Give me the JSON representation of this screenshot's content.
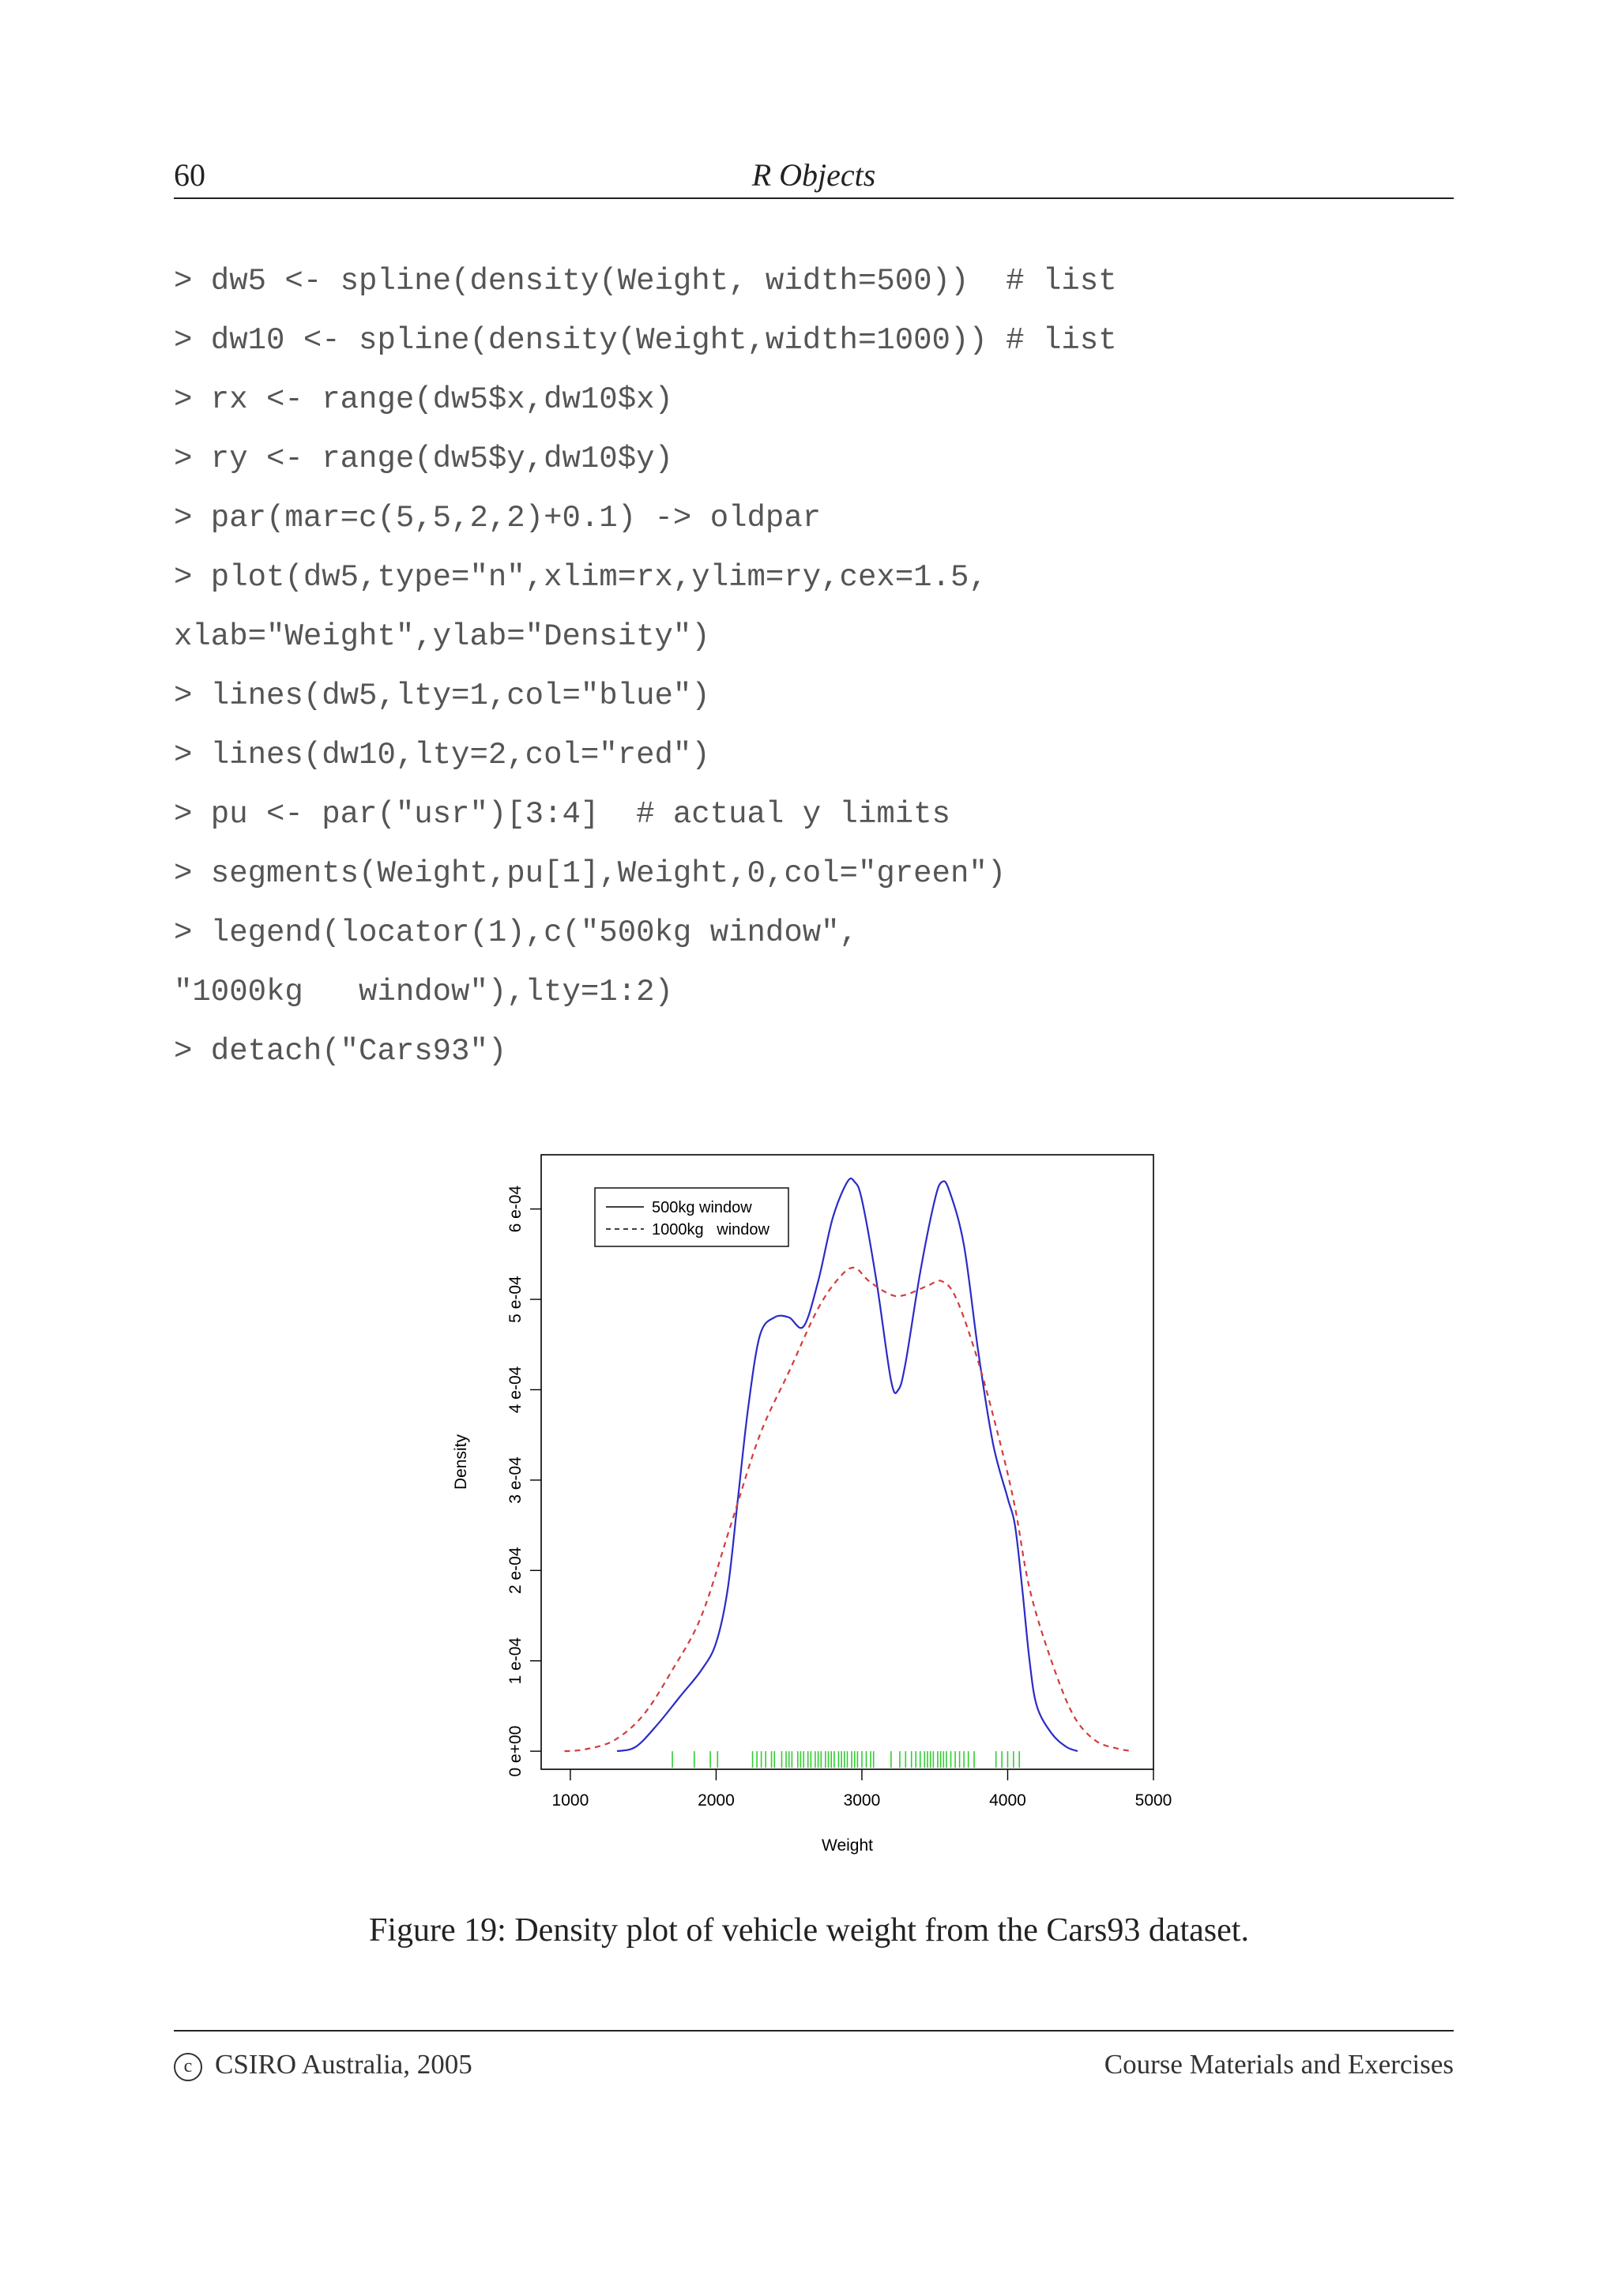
{
  "header": {
    "page_number": "60",
    "title": "R Objects"
  },
  "code_lines": [
    "> dw5 <- spline(density(Weight, width=500))  # list",
    "> dw10 <- spline(density(Weight,width=1000)) # list",
    "> rx <- range(dw5$x,dw10$x)",
    "> ry <- range(dw5$y,dw10$y)",
    "> par(mar=c(5,5,2,2)+0.1) -> oldpar",
    "> plot(dw5,type=\"n\",xlim=rx,ylim=ry,cex=1.5,",
    "xlab=\"Weight\",ylab=\"Density\")",
    "> lines(dw5,lty=1,col=\"blue\")",
    "> lines(dw10,lty=2,col=\"red\")",
    "> pu <- par(\"usr\")[3:4]  # actual y limits",
    "> segments(Weight,pu[1],Weight,0,col=\"green\")",
    "> legend(locator(1),c(\"500kg window\",",
    "\"1000kg   window\"),lty=1:2)",
    "> detach(\"Cars93\")"
  ],
  "chart_data": {
    "type": "line",
    "xlabel": "Weight",
    "ylabel": "Density",
    "xlim": [
      800,
      5000
    ],
    "ylim": [
      -2e-05,
      0.00066
    ],
    "x_ticks": [
      1000,
      2000,
      3000,
      4000,
      5000
    ],
    "x_tick_labels": [
      "1000",
      "2000",
      "3000",
      "4000",
      "5000"
    ],
    "y_ticks": [
      0,
      0.0001,
      0.0002,
      0.0003,
      0.0004,
      0.0005,
      0.0006
    ],
    "y_tick_labels": [
      "0 e+00",
      "1 e-04",
      "2 e-04",
      "3 e-04",
      "4 e-04",
      "5 e-04",
      "6 e-04"
    ],
    "legend_position": "top-left",
    "series": [
      {
        "name": "500kg window",
        "line_style": "solid",
        "color": "#2b2bc8",
        "points": [
          [
            1320,
            0
          ],
          [
            1450,
            5e-06
          ],
          [
            1600,
            3e-05
          ],
          [
            1750,
            6e-05
          ],
          [
            1900,
            9e-05
          ],
          [
            2000,
            0.00012
          ],
          [
            2080,
            0.00018
          ],
          [
            2150,
            0.00028
          ],
          [
            2220,
            0.00038
          ],
          [
            2300,
            0.00046
          ],
          [
            2400,
            0.00048
          ],
          [
            2500,
            0.00048
          ],
          [
            2600,
            0.00047
          ],
          [
            2700,
            0.00052
          ],
          [
            2800,
            0.00059
          ],
          [
            2900,
            0.00063
          ],
          [
            2950,
            0.00063
          ],
          [
            3000,
            0.00061
          ],
          [
            3100,
            0.00052
          ],
          [
            3200,
            0.00041
          ],
          [
            3250,
            0.0004
          ],
          [
            3300,
            0.00043
          ],
          [
            3400,
            0.00053
          ],
          [
            3500,
            0.00061
          ],
          [
            3550,
            0.00063
          ],
          [
            3600,
            0.00062
          ],
          [
            3700,
            0.00056
          ],
          [
            3800,
            0.00044
          ],
          [
            3900,
            0.00034
          ],
          [
            4000,
            0.00028
          ],
          [
            4050,
            0.00025
          ],
          [
            4100,
            0.00018
          ],
          [
            4150,
            0.0001
          ],
          [
            4200,
            5e-05
          ],
          [
            4300,
            2e-05
          ],
          [
            4400,
            5e-06
          ],
          [
            4480,
            0
          ]
        ]
      },
      {
        "name": "1000kg   window",
        "line_style": "dashed",
        "color": "#d43c3c",
        "points": [
          [
            960,
            0
          ],
          [
            1100,
            2e-06
          ],
          [
            1300,
            1.2e-05
          ],
          [
            1500,
            4e-05
          ],
          [
            1700,
            9e-05
          ],
          [
            1900,
            0.00015
          ],
          [
            2100,
            0.00025
          ],
          [
            2300,
            0.00035
          ],
          [
            2500,
            0.00042
          ],
          [
            2700,
            0.00049
          ],
          [
            2850,
            0.000525
          ],
          [
            2950,
            0.000535
          ],
          [
            3050,
            0.00052
          ],
          [
            3200,
            0.000505
          ],
          [
            3300,
            0.000505
          ],
          [
            3450,
            0.000515
          ],
          [
            3550,
            0.00052
          ],
          [
            3650,
            0.0005
          ],
          [
            3800,
            0.00043
          ],
          [
            3950,
            0.00034
          ],
          [
            4050,
            0.00027
          ],
          [
            4150,
            0.00018
          ],
          [
            4300,
            0.0001
          ],
          [
            4450,
            4e-05
          ],
          [
            4600,
            1.2e-05
          ],
          [
            4750,
            3e-06
          ],
          [
            4860,
            0
          ]
        ]
      }
    ],
    "rug_color": "#33cc33",
    "rug_x": [
      1700,
      1850,
      1960,
      2010,
      2250,
      2280,
      2310,
      2340,
      2380,
      2400,
      2450,
      2480,
      2500,
      2520,
      2560,
      2580,
      2600,
      2630,
      2650,
      2680,
      2700,
      2720,
      2750,
      2770,
      2790,
      2810,
      2840,
      2860,
      2880,
      2900,
      2930,
      2950,
      2970,
      3000,
      3030,
      3060,
      3080,
      3200,
      3260,
      3300,
      3340,
      3370,
      3400,
      3430,
      3450,
      3470,
      3490,
      3520,
      3540,
      3560,
      3580,
      3610,
      3640,
      3670,
      3700,
      3730,
      3770,
      3920,
      3960,
      4000,
      4040,
      4080
    ]
  },
  "caption": "Figure 19: Density plot of vehicle weight from the Cars93 dataset.",
  "footer": {
    "copyright_symbol": "c",
    "left": "CSIRO Australia, 2005",
    "right": "Course Materials and Exercises"
  }
}
